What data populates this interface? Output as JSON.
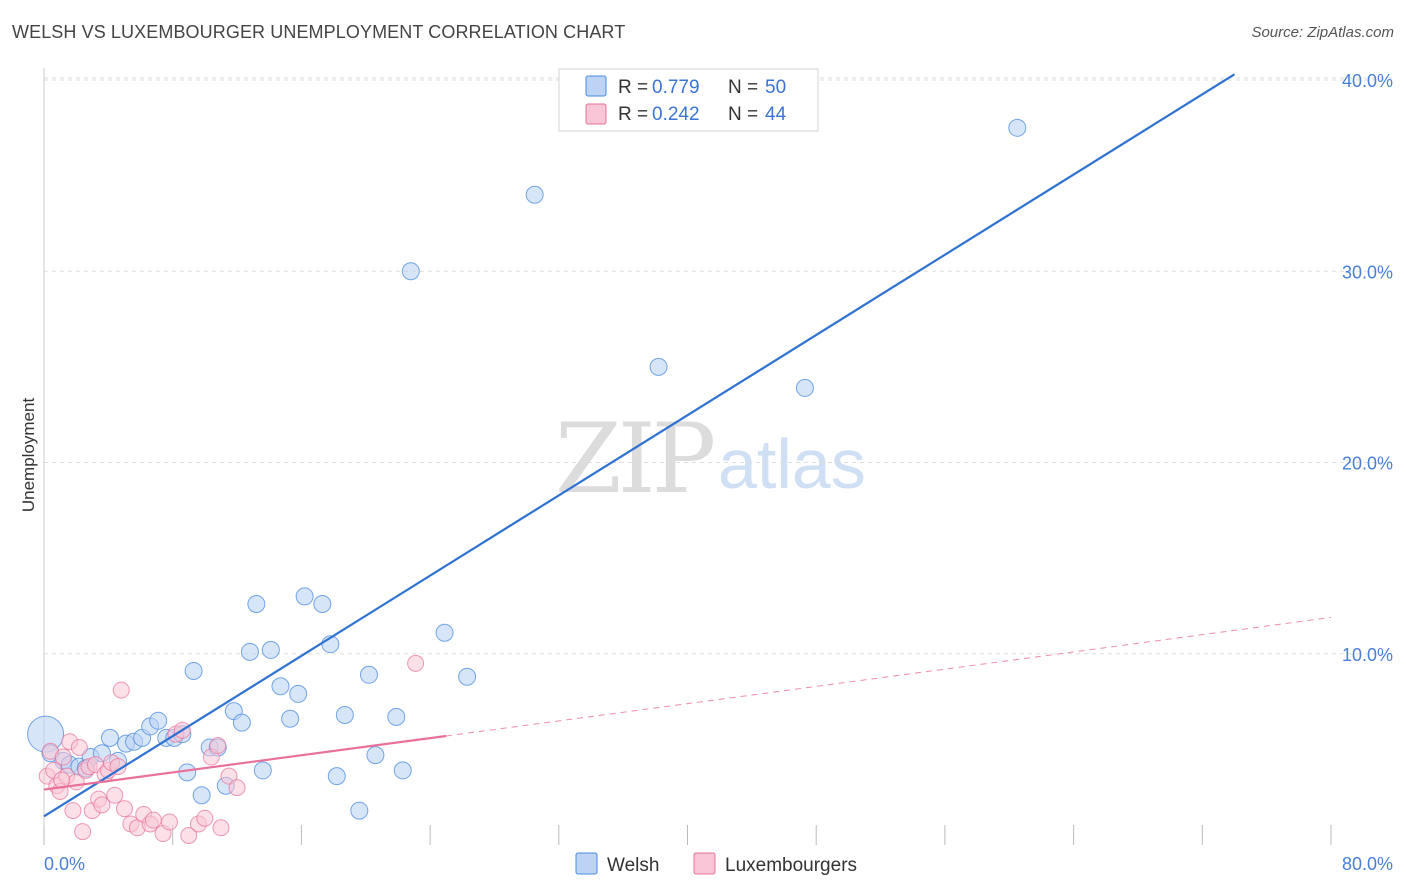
{
  "title": "WELSH VS LUXEMBOURGER UNEMPLOYMENT CORRELATION CHART",
  "source": "Source: ZipAtlas.com",
  "watermark": {
    "zip": "ZIP",
    "atlas": "atlas"
  },
  "colors": {
    "welsh": "#4a8ae0",
    "welsh_fill": "#bcd3f5",
    "lux": "#e8709a",
    "lux_fill": "#f8c6d6",
    "grid": "#dddddd",
    "axis_label": "#4a7fd6"
  },
  "legend": {
    "r_label": "R =",
    "n_label": "N =",
    "welsh": {
      "r": "0.779",
      "n": "50"
    },
    "lux": {
      "r": "0.242",
      "n": "44"
    }
  },
  "bottom_legend": {
    "welsh": "Welsh",
    "lux": "Luxembourgers"
  },
  "chart_data": {
    "type": "scatter",
    "title": "WELSH VS LUXEMBOURGER UNEMPLOYMENT CORRELATION CHART",
    "xlabel": "",
    "ylabel": "Unemployment",
    "xlim": [
      0,
      80
    ],
    "ylim": [
      0,
      40
    ],
    "x_tick_labels": [
      "0.0%",
      "80.0%"
    ],
    "y_ticks": [
      10,
      20,
      30,
      40
    ],
    "y_tick_labels": [
      "10.0%",
      "20.0%",
      "30.0%",
      "40.0%"
    ],
    "series": [
      {
        "name": "Welsh",
        "r": 0.779,
        "n": 50,
        "trend": {
          "x0": 0,
          "y0": 1.5,
          "x1": 74,
          "y1": 40.3
        },
        "points": [
          [
            0.1,
            5.8
          ],
          [
            0.4,
            4.8
          ],
          [
            1.2,
            4.4
          ],
          [
            1.6,
            4.2
          ],
          [
            2.2,
            4.1
          ],
          [
            2.9,
            4.6
          ],
          [
            3.6,
            4.8
          ],
          [
            4.1,
            5.6
          ],
          [
            4.6,
            4.4
          ],
          [
            5.1,
            5.3
          ],
          [
            5.6,
            5.4
          ],
          [
            6.1,
            5.6
          ],
          [
            6.6,
            6.2
          ],
          [
            7.1,
            6.5
          ],
          [
            7.6,
            5.6
          ],
          [
            8.1,
            5.6
          ],
          [
            8.6,
            5.8
          ],
          [
            8.9,
            3.8
          ],
          [
            9.3,
            9.1
          ],
          [
            9.8,
            2.6
          ],
          [
            10.3,
            5.1
          ],
          [
            10.8,
            5.1
          ],
          [
            11.3,
            3.1
          ],
          [
            11.8,
            7.0
          ],
          [
            12.3,
            6.4
          ],
          [
            12.8,
            10.1
          ],
          [
            13.2,
            12.6
          ],
          [
            13.6,
            3.9
          ],
          [
            14.1,
            10.2
          ],
          [
            14.7,
            8.3
          ],
          [
            15.3,
            6.6
          ],
          [
            15.8,
            7.9
          ],
          [
            16.2,
            13.0
          ],
          [
            17.3,
            12.6
          ],
          [
            17.8,
            10.5
          ],
          [
            18.2,
            3.6
          ],
          [
            18.7,
            6.8
          ],
          [
            19.6,
            1.8
          ],
          [
            20.2,
            8.9
          ],
          [
            20.6,
            4.7
          ],
          [
            21.9,
            6.7
          ],
          [
            22.3,
            3.9
          ],
          [
            22.8,
            30.0
          ],
          [
            24.9,
            11.1
          ],
          [
            26.3,
            8.8
          ],
          [
            30.5,
            34.0
          ],
          [
            38.2,
            25.0
          ],
          [
            47.3,
            23.9
          ],
          [
            60.5,
            37.5
          ],
          [
            2.6,
            4.0
          ]
        ]
      },
      {
        "name": "Luxembourgers",
        "r": 0.242,
        "n": 44,
        "trend": {
          "x0": 0,
          "y0": 2.9,
          "x1": 25,
          "y1": 5.7
        },
        "trend_dashed": {
          "x0": 25,
          "y0": 5.7,
          "x1": 80,
          "y1": 11.9
        },
        "points": [
          [
            0.2,
            3.6
          ],
          [
            0.4,
            4.9
          ],
          [
            0.6,
            3.9
          ],
          [
            0.8,
            3.1
          ],
          [
            1.0,
            2.8
          ],
          [
            1.2,
            4.6
          ],
          [
            1.4,
            3.6
          ],
          [
            1.6,
            5.4
          ],
          [
            1.8,
            1.8
          ],
          [
            2.0,
            3.3
          ],
          [
            2.2,
            5.1
          ],
          [
            2.4,
            0.7
          ],
          [
            2.6,
            3.9
          ],
          [
            2.8,
            4.1
          ],
          [
            3.0,
            1.8
          ],
          [
            3.2,
            4.2
          ],
          [
            3.4,
            2.4
          ],
          [
            3.6,
            2.1
          ],
          [
            3.8,
            3.7
          ],
          [
            4.0,
            3.9
          ],
          [
            4.2,
            4.3
          ],
          [
            4.4,
            2.6
          ],
          [
            4.6,
            4.1
          ],
          [
            4.8,
            8.1
          ],
          [
            5.0,
            1.9
          ],
          [
            5.4,
            1.1
          ],
          [
            5.8,
            0.9
          ],
          [
            6.2,
            1.6
          ],
          [
            6.6,
            1.1
          ],
          [
            6.8,
            1.3
          ],
          [
            7.4,
            0.6
          ],
          [
            7.8,
            1.2
          ],
          [
            8.2,
            5.8
          ],
          [
            8.6,
            6.0
          ],
          [
            9.0,
            0.5
          ],
          [
            9.6,
            1.1
          ],
          [
            10.0,
            1.4
          ],
          [
            10.4,
            4.6
          ],
          [
            10.8,
            5.2
          ],
          [
            11.0,
            0.9
          ],
          [
            11.5,
            3.6
          ],
          [
            12.0,
            3.0
          ],
          [
            23.1,
            9.5
          ],
          [
            1.1,
            3.4
          ]
        ]
      }
    ]
  }
}
